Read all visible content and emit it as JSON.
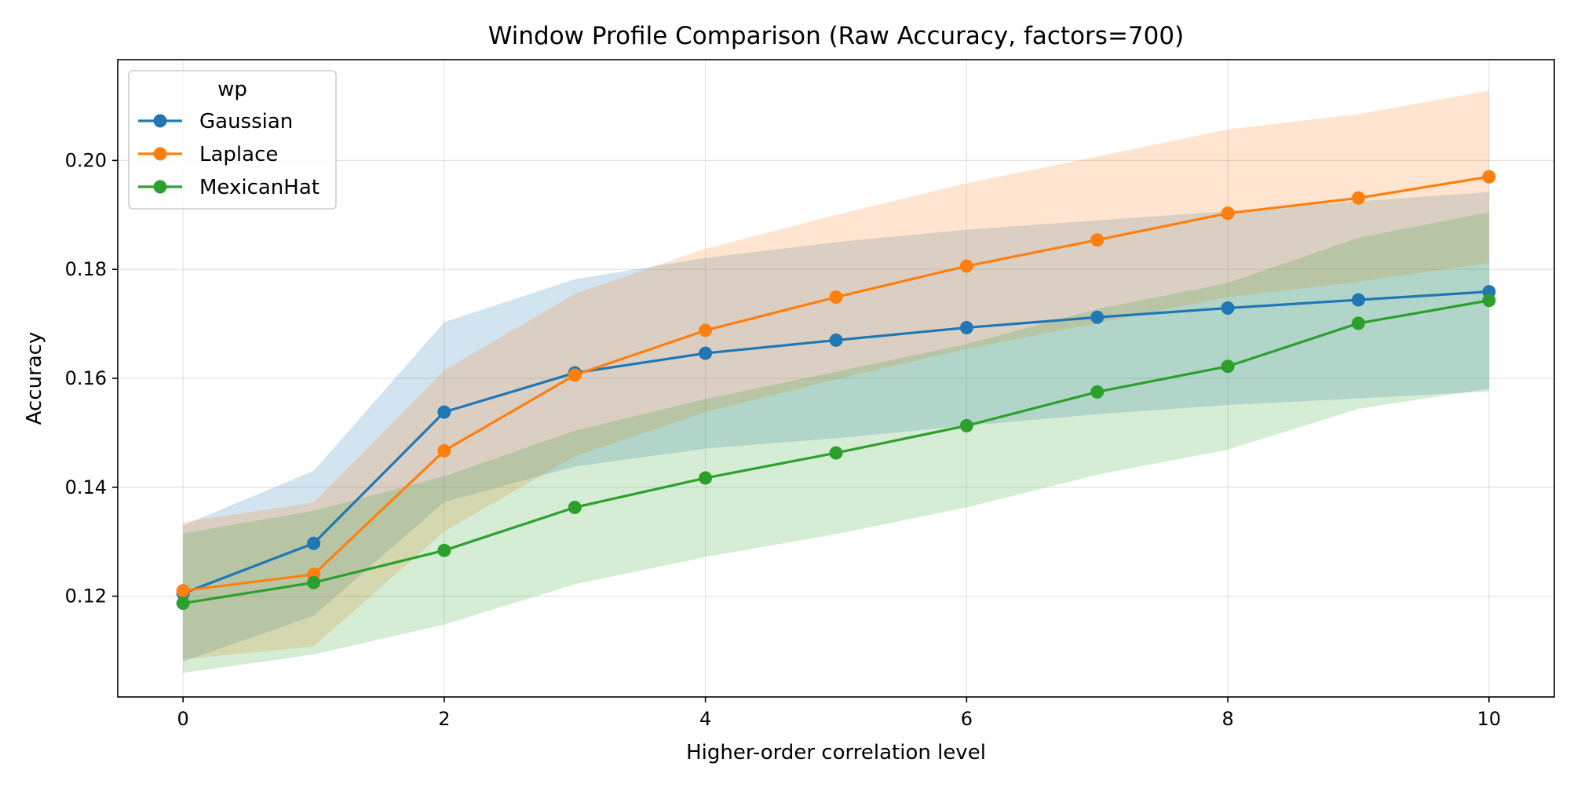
{
  "chart_data": {
    "type": "line",
    "title": "Window Profile Comparison (Raw Accuracy, factors=700)",
    "xlabel": "Higher-order correlation level",
    "ylabel": "Accuracy",
    "x": [
      0,
      1,
      2,
      3,
      4,
      5,
      6,
      7,
      8,
      9,
      10
    ],
    "xlim": [
      -0.5,
      10.5
    ],
    "ylim": [
      0.1015,
      0.2185
    ],
    "xticks": [
      0,
      2,
      4,
      6,
      8,
      10
    ],
    "xtick_labels": [
      "0",
      "2",
      "4",
      "6",
      "8",
      "10"
    ],
    "yticks": [
      0.12,
      0.14,
      0.16,
      0.18,
      0.2
    ],
    "ytick_labels": [
      "0.12",
      "0.14",
      "0.16",
      "0.18",
      "0.20"
    ],
    "grid": true,
    "legend": {
      "title": "wp",
      "placement": "top-left"
    },
    "series": [
      {
        "name": "Gaussian",
        "color": "#1f77b4",
        "values": [
          0.1205,
          0.1297,
          0.1538,
          0.161,
          0.1646,
          0.167,
          0.1693,
          0.1712,
          0.1729,
          0.1744,
          0.1759
        ],
        "band_upper": [
          0.133,
          0.143,
          0.1703,
          0.1782,
          0.1821,
          0.185,
          0.1873,
          0.189,
          0.1907,
          0.1925,
          0.1942
        ],
        "band_lower": [
          0.108,
          0.1164,
          0.1373,
          0.1438,
          0.1471,
          0.149,
          0.1513,
          0.1534,
          0.1551,
          0.1563,
          0.1576
        ]
      },
      {
        "name": "Laplace",
        "color": "#ff7f0e",
        "values": [
          0.121,
          0.124,
          0.1467,
          0.1606,
          0.1688,
          0.1749,
          0.1806,
          0.1854,
          0.1903,
          0.1931,
          0.197
        ],
        "band_upper": [
          0.1336,
          0.1372,
          0.1615,
          0.1755,
          0.1838,
          0.19,
          0.1958,
          0.2007,
          0.2057,
          0.2085,
          0.2128
        ],
        "band_lower": [
          0.1084,
          0.1108,
          0.1319,
          0.1457,
          0.1538,
          0.1598,
          0.1654,
          0.1701,
          0.1749,
          0.1777,
          0.1812
        ]
      },
      {
        "name": "MexicanHat",
        "color": "#2ca02c",
        "values": [
          0.1187,
          0.1225,
          0.1284,
          0.1363,
          0.1417,
          0.1463,
          0.1513,
          0.1575,
          0.1622,
          0.1701,
          0.1743
        ],
        "band_upper": [
          0.1315,
          0.1357,
          0.142,
          0.1504,
          0.1562,
          0.1612,
          0.1663,
          0.1727,
          0.1775,
          0.1858,
          0.1905
        ],
        "band_lower": [
          0.1059,
          0.1093,
          0.1148,
          0.1222,
          0.1272,
          0.1314,
          0.1363,
          0.1423,
          0.1469,
          0.1544,
          0.1581
        ]
      }
    ]
  }
}
